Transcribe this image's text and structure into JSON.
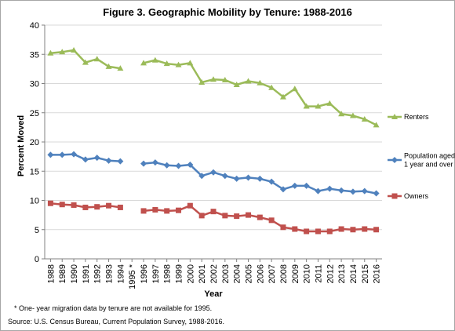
{
  "chart_data": {
    "type": "line",
    "title": "Figure 3. Geographic Mobility by Tenure: 1988-2016",
    "xlabel": "Year",
    "ylabel": "Percent Moved",
    "ylim": [
      0,
      40
    ],
    "yticks": [
      0,
      5,
      10,
      15,
      20,
      25,
      30,
      35,
      40
    ],
    "grid": "horizontal",
    "legend": "right",
    "categories": [
      "1988",
      "1989",
      "1990",
      "1991",
      "1992",
      "1993",
      "1994",
      "1995 *",
      "1996",
      "1997",
      "1998",
      "1999",
      "2000",
      "2001",
      "2002",
      "2003",
      "2004",
      "2005",
      "2006",
      "2007",
      "2008",
      "2009",
      "2010",
      "2011",
      "2012",
      "2013",
      "2014",
      "2015",
      "2016"
    ],
    "series": [
      {
        "name": "Renters",
        "color": "#9bbb59",
        "marker": "triangle",
        "values": [
          35.2,
          35.4,
          35.7,
          33.6,
          34.2,
          32.9,
          32.6,
          null,
          33.5,
          34.0,
          33.4,
          33.2,
          33.5,
          30.2,
          30.7,
          30.6,
          29.8,
          30.4,
          30.1,
          29.3,
          27.7,
          29.1,
          26.1,
          26.1,
          26.6,
          24.8,
          24.5,
          23.9,
          22.9
        ]
      },
      {
        "name": "Population aged 1 year and over",
        "legend_lines": [
          "Population aged",
          "1 year and over"
        ],
        "color": "#4f81bd",
        "marker": "diamond",
        "values": [
          17.8,
          17.8,
          17.9,
          17.0,
          17.3,
          16.8,
          16.7,
          null,
          16.3,
          16.5,
          16.0,
          15.9,
          16.1,
          14.2,
          14.8,
          14.2,
          13.7,
          13.9,
          13.7,
          13.2,
          11.9,
          12.5,
          12.5,
          11.6,
          12.0,
          11.7,
          11.5,
          11.6,
          11.2
        ]
      },
      {
        "name": "Owners",
        "color": "#c0504d",
        "marker": "square",
        "values": [
          9.5,
          9.3,
          9.2,
          8.8,
          8.9,
          9.1,
          8.8,
          null,
          8.2,
          8.4,
          8.2,
          8.3,
          9.1,
          7.4,
          8.1,
          7.4,
          7.3,
          7.5,
          7.1,
          6.6,
          5.4,
          5.1,
          4.7,
          4.7,
          4.7,
          5.1,
          5.0,
          5.1,
          5.0
        ]
      }
    ]
  },
  "footnote": "* One- year migration data by tenure are not available for 1995.",
  "source": "Source: U.S. Census Bureau, Current Population Survey, 1988-2016."
}
